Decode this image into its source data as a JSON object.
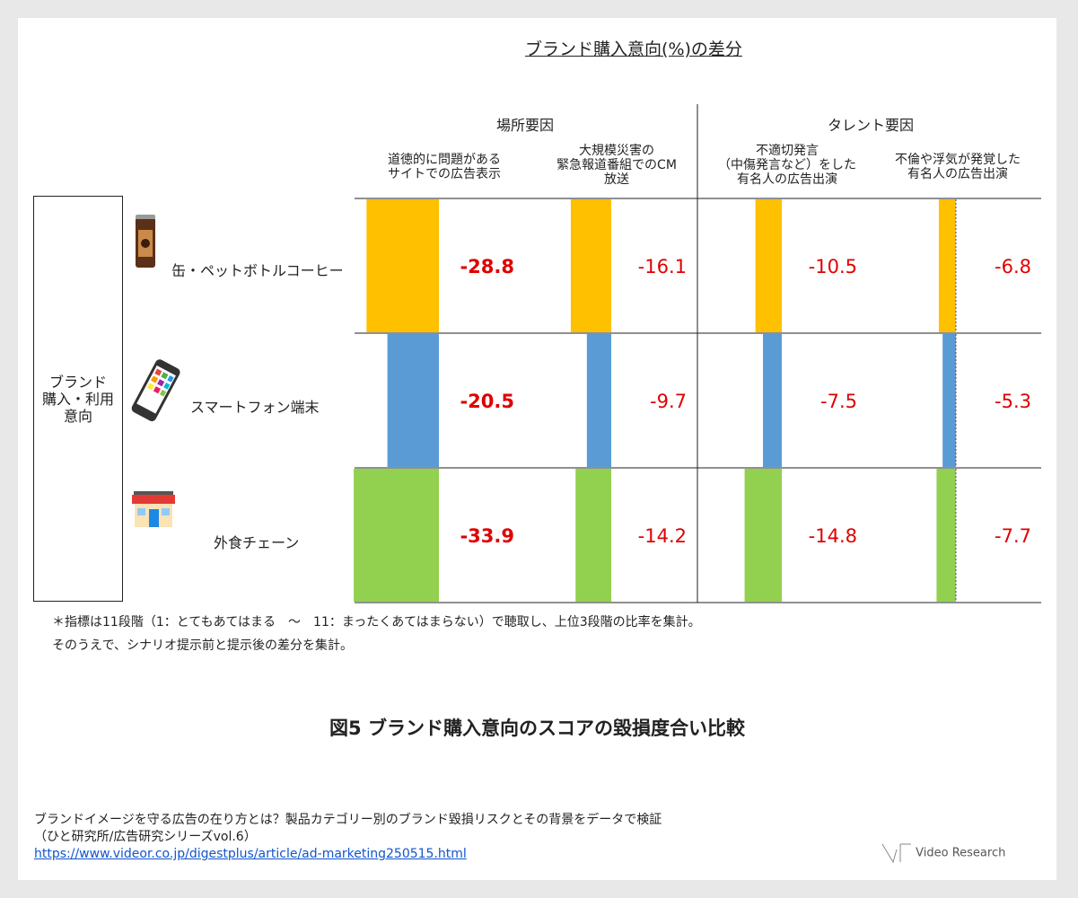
{
  "title": "ブランド購入意向(%)の差分",
  "groups": [
    "場所要因",
    "タレント要因"
  ],
  "columns": [
    [
      "道徳的に問題がある",
      "サイトでの広告表示"
    ],
    [
      "大規模災害の",
      "緊急報道番組でのCM",
      "放送"
    ],
    [
      "不適切発言",
      "（中傷発言など）をした",
      "有名人の広告出演"
    ],
    [
      "不倫や浮気が発覚した",
      "有名人の広告出演"
    ]
  ],
  "row_header": [
    "ブランド",
    "購入・利用",
    "意向"
  ],
  "rows": [
    {
      "label": "缶・ペットボトルコーヒー",
      "icon": "coffee-can-icon"
    },
    {
      "label": "スマートフォン端末",
      "icon": "smartphone-icon"
    },
    {
      "label": "外食チェーン",
      "icon": "restaurant-icon"
    }
  ],
  "chart_data": {
    "type": "bar",
    "categories": [
      "道徳的に問題があるサイトでの広告表示",
      "大規模災害の緊急報道番組でのCM放送",
      "不適切発言（中傷発言など）をした有名人の広告出演",
      "不倫や浮気が発覚した有名人の広告出演"
    ],
    "series": [
      {
        "name": "缶・ペットボトルコーヒー",
        "values": [
          -28.8,
          -16.1,
          -10.5,
          -6.8
        ],
        "color": "#FFC000"
      },
      {
        "name": "スマートフォン端末",
        "values": [
          -20.5,
          -9.7,
          -7.5,
          -5.3
        ],
        "color": "#5B9BD5"
      },
      {
        "name": "外食チェーン",
        "values": [
          -33.9,
          -14.2,
          -14.8,
          -7.7
        ],
        "color": "#92D050"
      }
    ],
    "value_labels": [
      [
        "-28.8",
        "-16.1",
        "-10.5",
        "-6.8"
      ],
      [
        "-20.5",
        "-9.7",
        "-7.5",
        "-5.3"
      ],
      [
        "-33.9",
        "-14.2",
        "-14.8",
        "-7.7"
      ]
    ],
    "bold_column": 0,
    "label_color": "#E00000"
  },
  "notes": [
    "＊指標は11段階（1：とてもあてはまる　～　11：まったくあてはまらない）で聴取し、上位3段階の比率を集計。",
    "そのうえで、シナリオ提示前と提示後の差分を集計。"
  ],
  "figure_caption": "図5 ブランド購入意向のスコアの毀損度合い比較",
  "source": {
    "line1": "ブランドイメージを守る広告の在り方とは？製品カテゴリー別のブランド毀損リスクとその背景をデータで検証",
    "line2": "（ひと研究所/広告研究シリーズvol.6）",
    "url": "https://www.videor.co.jp/digestplus/article/ad-marketing250515.html"
  },
  "logo": "Video Research"
}
